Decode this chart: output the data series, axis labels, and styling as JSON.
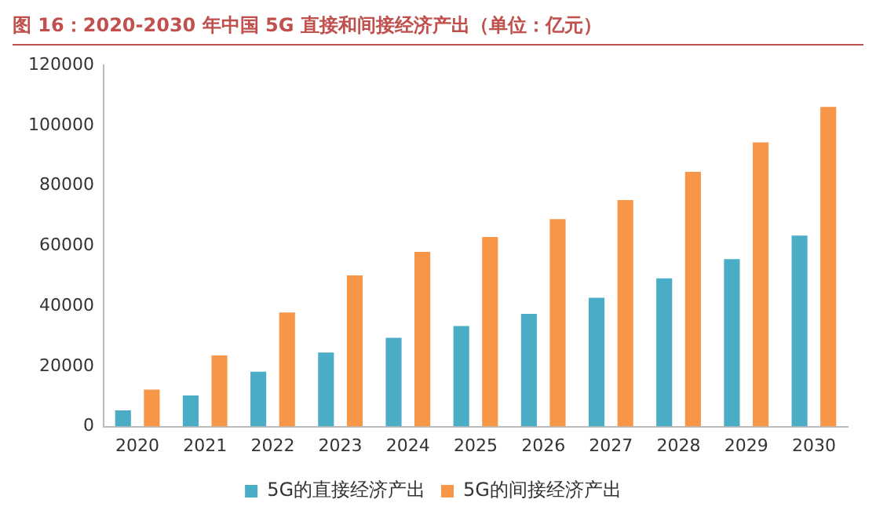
{
  "chart_data": {
    "type": "bar",
    "title": "图 16：2020-2030 年中国 5G 直接和间接经济产出（单位：亿元）",
    "categories": [
      "2020",
      "2021",
      "2022",
      "2023",
      "2024",
      "2025",
      "2026",
      "2027",
      "2028",
      "2029",
      "2030"
    ],
    "series": [
      {
        "name": "5G的直接经济产出",
        "color": "#4bacc6",
        "values": [
          5400,
          10300,
          18200,
          24600,
          29500,
          33400,
          37400,
          42800,
          49200,
          55600,
          63400
        ]
      },
      {
        "name": "5G的间接经济产出",
        "color": "#f79646",
        "values": [
          12300,
          23600,
          37900,
          50200,
          58000,
          63000,
          68900,
          75200,
          84600,
          94400,
          106200
        ]
      }
    ],
    "ylim": [
      0,
      120000
    ],
    "yticks": [
      0,
      20000,
      40000,
      60000,
      80000,
      100000,
      120000
    ],
    "grid": false,
    "legend": "bottom"
  }
}
